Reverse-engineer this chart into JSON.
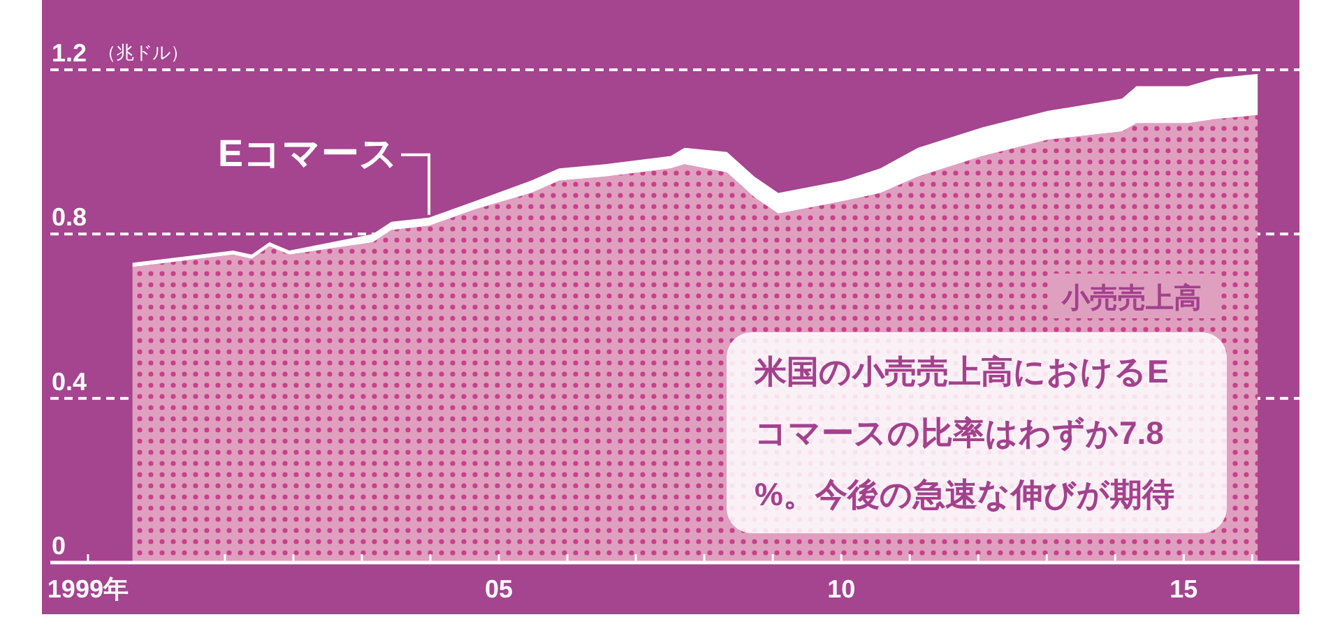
{
  "chart_data": {
    "type": "area",
    "stacked": true,
    "ylabel": "（兆ドル）",
    "x": [
      1999.65,
      2001.12,
      2001.39,
      2001.65,
      2001.94,
      2003.16,
      2003.43,
      2003.98,
      2004.65,
      2005.47,
      2005.88,
      2006.55,
      2007.51,
      2007.71,
      2008.33,
      2008.73,
      2009.08,
      2010.02,
      2010.57,
      2011.12,
      2012.06,
      2013.02,
      2014.1,
      2014.31,
      2014.8,
      2015.06,
      2015.47,
      2016.08
    ],
    "series": [
      {
        "name": "小売売上高",
        "color": "#dfa0c0",
        "values": [
          0.72,
          0.75,
          0.74,
          0.77,
          0.75,
          0.78,
          0.81,
          0.82,
          0.86,
          0.9,
          0.93,
          0.94,
          0.96,
          0.97,
          0.95,
          0.89,
          0.85,
          0.88,
          0.9,
          0.94,
          0.99,
          1.03,
          1.05,
          1.07,
          1.07,
          1.07,
          1.08,
          1.09
        ]
      },
      {
        "name": "Eコマース",
        "color": "#ffffff",
        "values": [
          0.01,
          0.01,
          0.01,
          0.01,
          0.01,
          0.02,
          0.02,
          0.02,
          0.02,
          0.03,
          0.03,
          0.03,
          0.03,
          0.04,
          0.05,
          0.05,
          0.05,
          0.05,
          0.06,
          0.07,
          0.07,
          0.07,
          0.08,
          0.09,
          0.09,
          0.09,
          0.1,
          0.1
        ]
      }
    ],
    "xlim": [
      1998.45,
      2016.69
    ],
    "xticks": [
      {
        "value": 1999,
        "label": "1999年"
      },
      {
        "value": 2001,
        "label": null
      },
      {
        "value": 2002,
        "label": null
      },
      {
        "value": 2003,
        "label": null
      },
      {
        "value": 2004,
        "label": null
      },
      {
        "value": 2005,
        "label": "05"
      },
      {
        "value": 2006,
        "label": null
      },
      {
        "value": 2007,
        "label": null
      },
      {
        "value": 2008,
        "label": null
      },
      {
        "value": 2009,
        "label": null
      },
      {
        "value": 2010,
        "label": "10"
      },
      {
        "value": 2011,
        "label": null
      },
      {
        "value": 2012,
        "label": null
      },
      {
        "value": 2013,
        "label": null
      },
      {
        "value": 2014,
        "label": null
      },
      {
        "value": 2015,
        "label": "15"
      },
      {
        "value": 2016,
        "label": null
      }
    ],
    "ylim": [
      0,
      1.37
    ],
    "yticks": [
      0,
      0.4,
      0.8,
      1.2
    ],
    "grid": "y",
    "annotations": [
      "米国の小売売上高におけるEコマースの比率はわずか7.8%。今後の急速な伸びが期待"
    ]
  }
}
